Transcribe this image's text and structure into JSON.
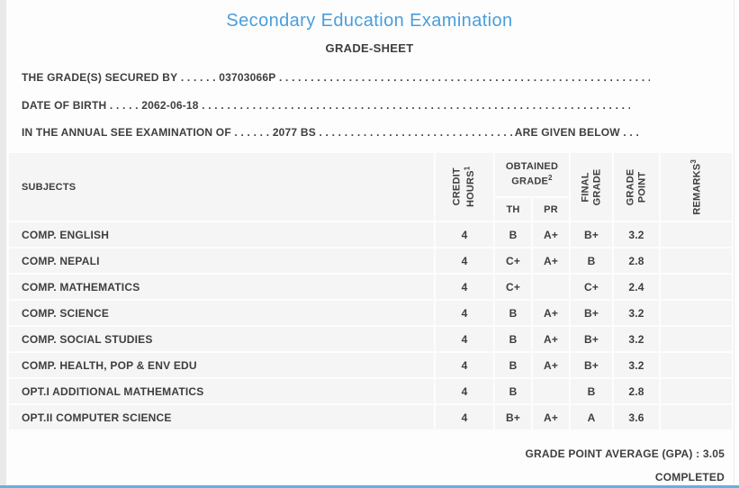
{
  "page": {
    "title": "Secondary Education Examination",
    "subtitle": "GRADE-SHEET",
    "accent_color": "#4a9edc",
    "bottom_bar_color": "#64b1e1"
  },
  "info_lines": [
    {
      "label": "THE GRADE(S) SECURED BY",
      "dots_before": " . . . . . . ",
      "value": "03703066P",
      "fill": " . . . . . . . . . . . . . . . . . . . . . . . . . . . . . . . . . . . . . . . . . . . . . . . . . . . . . . . . . . . . . . . . . . . . . . . . . . . . . . . . . . . . . . . . . . . . . . . . . . . . . . . . . . . . . . . .",
      "suffix": ""
    },
    {
      "label": "DATE OF BIRTH",
      "dots_before": " . . . . . ",
      "value": "2062-06-18",
      "fill": " . . . . . . . . . . . . . . . . . . . . . . . . . . . . . . . . . . . . . . . . . . . . . . . . . . . . . . . . . . . . . . . . . . . . . . . . . . . . . . . . . . . . . . . . . . . . . . . . . . . . . . . . . . . . . . . .",
      "suffix": ""
    },
    {
      "label": "IN THE ANNUAL SEE EXAMINATION OF",
      "dots_before": " . . . . . . ",
      "value": "2077 BS",
      "fill": " . . . . . . . . . . . . . . . . . . . . . . . . . . . . . . . . . . . . . . . . . . . . . . . . . . . . . . . . . . . . . . . . . . . . . . . . . . . . . . . . . . . . . . . . . . . . . . . . . . . . . . . . . . . . . . . .",
      "suffix": " ARE GIVEN BELOW . . ."
    }
  ],
  "table": {
    "headers": {
      "subjects": "SUBJECTS",
      "credit_line1": "CREDIT",
      "credit_line2": "HOURS",
      "credit_sup": "1",
      "obtained_line1": "OBTAINED",
      "obtained_line2": "GRADE",
      "obtained_sup": "2",
      "th": "TH",
      "pr": "PR",
      "final_line1": "FINAL",
      "final_line2": "GRADE",
      "gp_line1": "GRADE",
      "gp_line2": "POINT",
      "remarks": "REMARKS",
      "remarks_sup": "3"
    },
    "rows": [
      {
        "subject": "COMP. ENGLISH",
        "credit_hours": "4",
        "th": "B",
        "pr": "A+",
        "final_grade": "B+",
        "grade_point": "3.2",
        "remarks": ""
      },
      {
        "subject": "COMP. NEPALI",
        "credit_hours": "4",
        "th": "C+",
        "pr": "A+",
        "final_grade": "B",
        "grade_point": "2.8",
        "remarks": ""
      },
      {
        "subject": "COMP. MATHEMATICS",
        "credit_hours": "4",
        "th": "C+",
        "pr": "",
        "final_grade": "C+",
        "grade_point": "2.4",
        "remarks": ""
      },
      {
        "subject": "COMP. SCIENCE",
        "credit_hours": "4",
        "th": "B",
        "pr": "A+",
        "final_grade": "B+",
        "grade_point": "3.2",
        "remarks": ""
      },
      {
        "subject": "COMP. SOCIAL STUDIES",
        "credit_hours": "4",
        "th": "B",
        "pr": "A+",
        "final_grade": "B+",
        "grade_point": "3.2",
        "remarks": ""
      },
      {
        "subject": "COMP. HEALTH, POP & ENV EDU",
        "credit_hours": "4",
        "th": "B",
        "pr": "A+",
        "final_grade": "B+",
        "grade_point": "3.2",
        "remarks": ""
      },
      {
        "subject": "OPT.I ADDITIONAL MATHEMATICS",
        "credit_hours": "4",
        "th": "B",
        "pr": "",
        "final_grade": "B",
        "grade_point": "2.8",
        "remarks": ""
      },
      {
        "subject": "OPT.II COMPUTER SCIENCE",
        "credit_hours": "4",
        "th": "B+",
        "pr": "A+",
        "final_grade": "A",
        "grade_point": "3.6",
        "remarks": ""
      }
    ]
  },
  "footer": {
    "gpa_label": "GRADE POINT AVERAGE (GPA) : ",
    "gpa_value": "3.05",
    "status": "COMPLETED"
  }
}
